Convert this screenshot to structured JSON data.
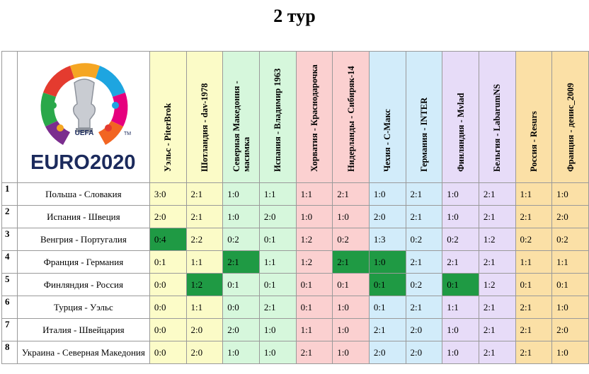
{
  "title": "2 тур",
  "logo": {
    "uefa": "UEFA",
    "euro": "EURO",
    "year": "2020",
    "tm": "TM"
  },
  "columns": [
    "Уэльс - PiterBrok",
    "Шотландия - dav-1978",
    "Северная Македония - масимка",
    "Испания - Владимир 1963",
    "Хорватия - Краснодарочка",
    "Нидерланды - Сибиряк-14",
    "Чехия - С-Макс",
    "Германия - INTER",
    "Финляндия - Mvlad",
    "Бельгия - LabarumNS",
    "Россия - Resurs",
    "Франция - денис_2009"
  ],
  "rows": [
    {
      "num": "1",
      "match": "Польша - Словакия",
      "scores": [
        "3:0",
        "2:1",
        "1:0",
        "1:1",
        "1:1",
        "2:1",
        "1:0",
        "2:1",
        "1:0",
        "2:1",
        "1:1",
        "1:0"
      ],
      "hits": []
    },
    {
      "num": "2",
      "match": "Испания - Швеция",
      "scores": [
        "2:0",
        "2:1",
        "1:0",
        "2:0",
        "1:0",
        "1:0",
        "2:0",
        "2:1",
        "1:0",
        "2:1",
        "2:1",
        "2:0"
      ],
      "hits": []
    },
    {
      "num": "3",
      "match": "Венгрия - Португалия",
      "scores": [
        "0:4",
        "2:2",
        "0:2",
        "0:1",
        "1:2",
        "0:2",
        "1:3",
        "0:2",
        "0:2",
        "1:2",
        "0:2",
        "0:2"
      ],
      "hits": [
        0
      ]
    },
    {
      "num": "4",
      "match": "Франция - Германия",
      "scores": [
        "0:1",
        "1:1",
        "2:1",
        "1:1",
        "1:2",
        "2:1",
        "1:0",
        "2:1",
        "2:1",
        "2:1",
        "1:1",
        "1:1"
      ],
      "hits": [
        2,
        5,
        6
      ]
    },
    {
      "num": "5",
      "match": "Финляндия - Россия",
      "scores": [
        "0:0",
        "1:2",
        "0:1",
        "0:1",
        "0:1",
        "0:1",
        "0:1",
        "0:2",
        "0:1",
        "1:2",
        "0:1",
        "0:1"
      ],
      "hits": [
        1,
        6,
        8
      ]
    },
    {
      "num": "6",
      "match": "Турция - Уэльс",
      "scores": [
        "0:0",
        "1:1",
        "0:0",
        "2:1",
        "0:1",
        "1:0",
        "0:1",
        "2:1",
        "1:1",
        "2:1",
        "2:1",
        "1:0"
      ],
      "hits": []
    },
    {
      "num": "7",
      "match": "Италия - Швейцария",
      "scores": [
        "0:0",
        "2:0",
        "2:0",
        "1:0",
        "1:1",
        "1:0",
        "2:1",
        "2:0",
        "1:0",
        "2:1",
        "2:1",
        "2:0"
      ],
      "hits": []
    },
    {
      "num": "8",
      "match": "Украина - Северная Македония",
      "scores": [
        "0:0",
        "2:0",
        "1:0",
        "1:0",
        "2:1",
        "1:0",
        "2:0",
        "2:0",
        "1:0",
        "2:1",
        "2:1",
        "1:0"
      ],
      "hits": []
    }
  ],
  "colors": {
    "yellow": "#fcfcc8",
    "green": "#d6f7dc",
    "pink": "#fbd0d0",
    "blue": "#d2ecfa",
    "lavender": "#e7dcf8",
    "orange": "#fbe0a6",
    "hit": "#1f9a44"
  }
}
